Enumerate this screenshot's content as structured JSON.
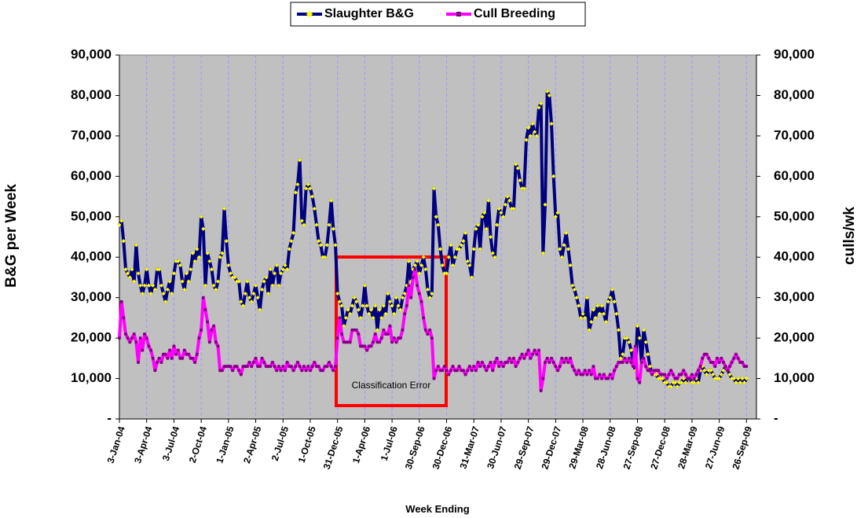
{
  "chart_data": {
    "type": "line",
    "xlabel": "Week Ending",
    "ylabel": "B&G per Week",
    "y2label": "culls/wk",
    "annotation": "Classification Error",
    "legend": "top",
    "categories": [
      "3-Jan-04",
      null,
      null,
      null,
      null,
      null,
      null,
      null,
      null,
      null,
      null,
      null,
      null,
      "3-Apr-04",
      null,
      null,
      null,
      null,
      null,
      null,
      null,
      null,
      null,
      null,
      null,
      null,
      "3-Jul-04",
      null,
      null,
      null,
      null,
      null,
      null,
      null,
      null,
      null,
      null,
      null,
      null,
      "2-Oct-04",
      null,
      null,
      null,
      null,
      null,
      null,
      null,
      null,
      null,
      null,
      null,
      null,
      "1-Jan-05",
      null,
      null,
      null,
      null,
      null,
      null,
      null,
      null,
      null,
      null,
      null,
      null,
      "2-Apr-05",
      null,
      null,
      null,
      null,
      null,
      null,
      null,
      null,
      null,
      null,
      null,
      null,
      "2-Jul-05",
      null,
      null,
      null,
      null,
      null,
      null,
      null,
      null,
      null,
      null,
      null,
      null,
      "1-Oct-05",
      null,
      null,
      null,
      null,
      null,
      null,
      null,
      null,
      null,
      null,
      null,
      null,
      "31-Dec-05",
      null,
      null,
      null,
      null,
      null,
      null,
      null,
      null,
      null,
      null,
      null,
      null,
      "1-Apr-06",
      null,
      null,
      null,
      null,
      null,
      null,
      null,
      null,
      null,
      null,
      null,
      null,
      "1-Jul-06",
      null,
      null,
      null,
      null,
      null,
      null,
      null,
      null,
      null,
      null,
      null,
      null,
      "30-Sep-06",
      null,
      null,
      null,
      null,
      null,
      null,
      null,
      null,
      null,
      null,
      null,
      null,
      "30-Dec-06",
      null,
      null,
      null,
      null,
      null,
      null,
      null,
      null,
      null,
      null,
      null,
      null,
      "31-Mar-07",
      null,
      null,
      null,
      null,
      null,
      null,
      null,
      null,
      null,
      null,
      null,
      null,
      "30-Jun-07",
      null,
      null,
      null,
      null,
      null,
      null,
      null,
      null,
      null,
      null,
      null,
      null,
      "29-Sep-07",
      null,
      null,
      null,
      null,
      null,
      null,
      null,
      null,
      null,
      null,
      null,
      null,
      "29-Dec-07",
      null,
      null,
      null,
      null,
      null,
      null,
      null,
      null,
      null,
      null,
      null,
      null,
      "29-Mar-08",
      null,
      null,
      null,
      null,
      null,
      null,
      null,
      null,
      null,
      null,
      null,
      null,
      "28-Jun-08",
      null,
      null,
      null,
      null,
      null,
      null,
      null,
      null,
      null,
      null,
      null,
      null,
      "27-Sep-08",
      null,
      null,
      null,
      null,
      null,
      null,
      null,
      null,
      null,
      null,
      null,
      null,
      "27-Dec-08",
      null,
      null,
      null,
      null,
      null,
      null,
      null,
      null,
      null,
      null,
      null,
      null,
      "28-Mar-09",
      null,
      null,
      null,
      null,
      null,
      null,
      null,
      null,
      null,
      null,
      null,
      null,
      "27-Jun-09",
      null,
      null,
      null,
      null,
      null,
      null,
      null,
      null,
      null,
      null,
      null,
      null,
      "26-Sep-09"
    ],
    "series": [
      {
        "name": "Slaughter B&G",
        "color": "#000080",
        "marker_color": "#ffff00",
        "values": [
          48000,
          49000,
          44000,
          37000,
          36000,
          35000,
          37000,
          34000,
          43000,
          36000,
          33000,
          31000,
          33000,
          37000,
          33000,
          31000,
          33000,
          32000,
          37000,
          37000,
          33000,
          31000,
          29000,
          32000,
          34000,
          31000,
          36000,
          39000,
          39000,
          38000,
          34000,
          32000,
          36000,
          34000,
          37000,
          41000,
          39000,
          42000,
          40000,
          50000,
          47000,
          33000,
          41000,
          39000,
          37000,
          33000,
          32000,
          34000,
          40000,
          41000,
          52000,
          44000,
          38000,
          36000,
          35000,
          35000,
          34000,
          34000,
          29000,
          28000,
          31000,
          34000,
          30000,
          29000,
          31000,
          33000,
          30000,
          27000,
          32000,
          34000,
          35000,
          31000,
          37000,
          33000,
          36000,
          38000,
          33000,
          36000,
          37000,
          38000,
          37000,
          42000,
          44000,
          46000,
          56000,
          58000,
          64000,
          49000,
          48000,
          57000,
          58000,
          57000,
          55000,
          52000,
          48000,
          44000,
          43000,
          40000,
          40000,
          43000,
          48000,
          54000,
          47000,
          43000,
          31000,
          29000,
          28000,
          23000,
          25000,
          27000,
          26000,
          28000,
          30000,
          29000,
          27000,
          25000,
          28000,
          33000,
          28000,
          26000,
          27000,
          25000,
          28000,
          22000,
          27000,
          25000,
          28000,
          26000,
          31000,
          29000,
          28000,
          26000,
          30000,
          28000,
          27000,
          30000,
          31000,
          33000,
          39000,
          34000,
          37000,
          38000,
          39000,
          36000,
          38000,
          40000,
          37000,
          32000,
          30000,
          31000,
          57000,
          50000,
          48000,
          42000,
          38000,
          36000,
          36000,
          40000,
          43000,
          38000,
          40000,
          42000,
          42000,
          43000,
          44000,
          46000,
          39000,
          38000,
          35000,
          42000,
          47000,
          48000,
          42000,
          50000,
          51000,
          47000,
          54000,
          45000,
          41000,
          40000,
          48000,
          52000,
          51000,
          50000,
          53000,
          55000,
          54000,
          52000,
          52000,
          63000,
          62000,
          59000,
          57000,
          57000,
          69000,
          72000,
          70000,
          73000,
          71000,
          70000,
          77000,
          78000,
          41000,
          53000,
          81000,
          80000,
          73000,
          60000,
          50000,
          51000,
          42000,
          40000,
          43000,
          46000,
          42000,
          38000,
          33000,
          32000,
          30000,
          28000,
          25000,
          26000,
          25000,
          30000,
          22000,
          24000,
          27000,
          25000,
          28000,
          26000,
          28000,
          26000,
          24000,
          29000,
          30000,
          32000,
          29000,
          26000,
          22000,
          15000,
          16000,
          20000,
          20000,
          19000,
          17000,
          14000,
          12000,
          23000,
          20000,
          14000,
          22000,
          19000,
          16000,
          13000,
          11000,
          11000,
          11000,
          10000,
          10000,
          10000,
          9000,
          9000,
          8000,
          8000,
          9000,
          9000,
          8000,
          9000,
          9000,
          10000,
          9000,
          10000,
          10000,
          9000,
          9000,
          10000,
          9000,
          12000,
          13000,
          12000,
          11000,
          12000,
          12000,
          11000,
          10000,
          10000,
          10000,
          11000,
          12000,
          13000,
          12000,
          11000,
          10000,
          10000,
          9000,
          10000,
          9000,
          10000,
          9000,
          10000
        ]
      },
      {
        "name": "Cull Breeding",
        "color": "#ff00ff",
        "marker_color": "#800080",
        "axis": "y2",
        "values": [
          20000,
          29000,
          25000,
          21000,
          20000,
          19000,
          20000,
          21000,
          19000,
          14000,
          20000,
          17000,
          21000,
          20000,
          18000,
          17000,
          15000,
          12000,
          14000,
          15000,
          14000,
          16000,
          16000,
          15000,
          17000,
          15000,
          18000,
          16000,
          17000,
          15000,
          15000,
          17000,
          16000,
          16000,
          15000,
          15000,
          14000,
          16000,
          20000,
          22000,
          30000,
          27000,
          24000,
          19000,
          22000,
          23000,
          19000,
          18000,
          12000,
          12000,
          13000,
          13000,
          13000,
          13000,
          12000,
          13000,
          13000,
          12000,
          11000,
          13000,
          13000,
          13000,
          14000,
          13000,
          14000,
          15000,
          13000,
          13000,
          15000,
          14000,
          13000,
          13000,
          13000,
          14000,
          13000,
          12000,
          13000,
          12000,
          13000,
          12000,
          14000,
          13000,
          13000,
          12000,
          13000,
          14000,
          13000,
          12000,
          13000,
          12000,
          13000,
          12000,
          13000,
          14000,
          13000,
          13000,
          12000,
          12000,
          13000,
          13000,
          14000,
          13000,
          12000,
          13000,
          20000,
          25000,
          21000,
          19000,
          19000,
          19000,
          19000,
          22000,
          22000,
          22000,
          21000,
          18000,
          18000,
          18000,
          17000,
          18000,
          18000,
          19000,
          21000,
          19000,
          19000,
          20000,
          22000,
          21000,
          21000,
          23000,
          19000,
          20000,
          19000,
          20000,
          20000,
          22000,
          26000,
          28000,
          33000,
          30000,
          35000,
          37000,
          33000,
          31000,
          29000,
          25000,
          22000,
          21000,
          22000,
          20000,
          10000,
          12000,
          13000,
          12000,
          12000,
          13000,
          12000,
          11000,
          12000,
          13000,
          12000,
          12000,
          13000,
          12000,
          12000,
          11000,
          12000,
          13000,
          12000,
          13000,
          12000,
          14000,
          13000,
          14000,
          13000,
          12000,
          13000,
          14000,
          12000,
          14000,
          15000,
          13000,
          14000,
          13000,
          14000,
          14000,
          15000,
          14000,
          15000,
          13000,
          14000,
          15000,
          16000,
          15000,
          16000,
          17000,
          15000,
          16000,
          17000,
          16000,
          17000,
          7000,
          10000,
          14000,
          15000,
          14000,
          15000,
          14000,
          13000,
          12000,
          13000,
          15000,
          14000,
          15000,
          14000,
          15000,
          13000,
          12000,
          11000,
          12000,
          11000,
          11000,
          12000,
          11000,
          12000,
          11000,
          13000,
          10000,
          10000,
          11000,
          10000,
          11000,
          10000,
          10000,
          11000,
          10000,
          12000,
          13000,
          14000,
          14000,
          14000,
          15000,
          14000,
          15000,
          14000,
          13000,
          18000,
          10000,
          9000,
          14000,
          15000,
          13000,
          12000,
          12000,
          11000,
          12000,
          12000,
          12000,
          11000,
          11000,
          11000,
          10000,
          11000,
          12000,
          11000,
          10000,
          10000,
          11000,
          11000,
          12000,
          11000,
          10000,
          10000,
          11000,
          10000,
          11000,
          12000,
          13000,
          15000,
          16000,
          16000,
          15000,
          14000,
          14000,
          13000,
          15000,
          14000,
          15000,
          14000,
          13000,
          12000,
          13000,
          14000,
          15000,
          16000,
          15000,
          14000,
          14000,
          13000,
          13000
        ]
      }
    ],
    "ylim": [
      0,
      90000
    ],
    "yticks": [
      {
        "value": 0,
        "label": "-"
      },
      {
        "value": 10000,
        "label": "10,000"
      },
      {
        "value": 20000,
        "label": "20,000"
      },
      {
        "value": 30000,
        "label": "30,000"
      },
      {
        "value": 40000,
        "label": "40,000"
      },
      {
        "value": 50000,
        "label": "50,000"
      },
      {
        "value": 60000,
        "label": "60,000"
      },
      {
        "value": 70000,
        "label": "70,000"
      },
      {
        "value": 80000,
        "label": "80,000"
      },
      {
        "value": 90000,
        "label": "90,000"
      }
    ],
    "y2lim": [
      0,
      90000
    ],
    "y2ticks": [
      {
        "value": 0,
        "label": "-"
      },
      {
        "value": 10000,
        "label": "10,000"
      },
      {
        "value": 20000,
        "label": "20,000"
      },
      {
        "value": 30000,
        "label": "30,000"
      },
      {
        "value": 40000,
        "label": "40,000"
      },
      {
        "value": 50000,
        "label": "50,000"
      },
      {
        "value": 60000,
        "label": "60,000"
      },
      {
        "value": 70000,
        "label": "70,000"
      },
      {
        "value": 80000,
        "label": "80,000"
      },
      {
        "value": 90000,
        "label": "90,000"
      }
    ],
    "background": "#c0c0c0",
    "grid": "x"
  }
}
